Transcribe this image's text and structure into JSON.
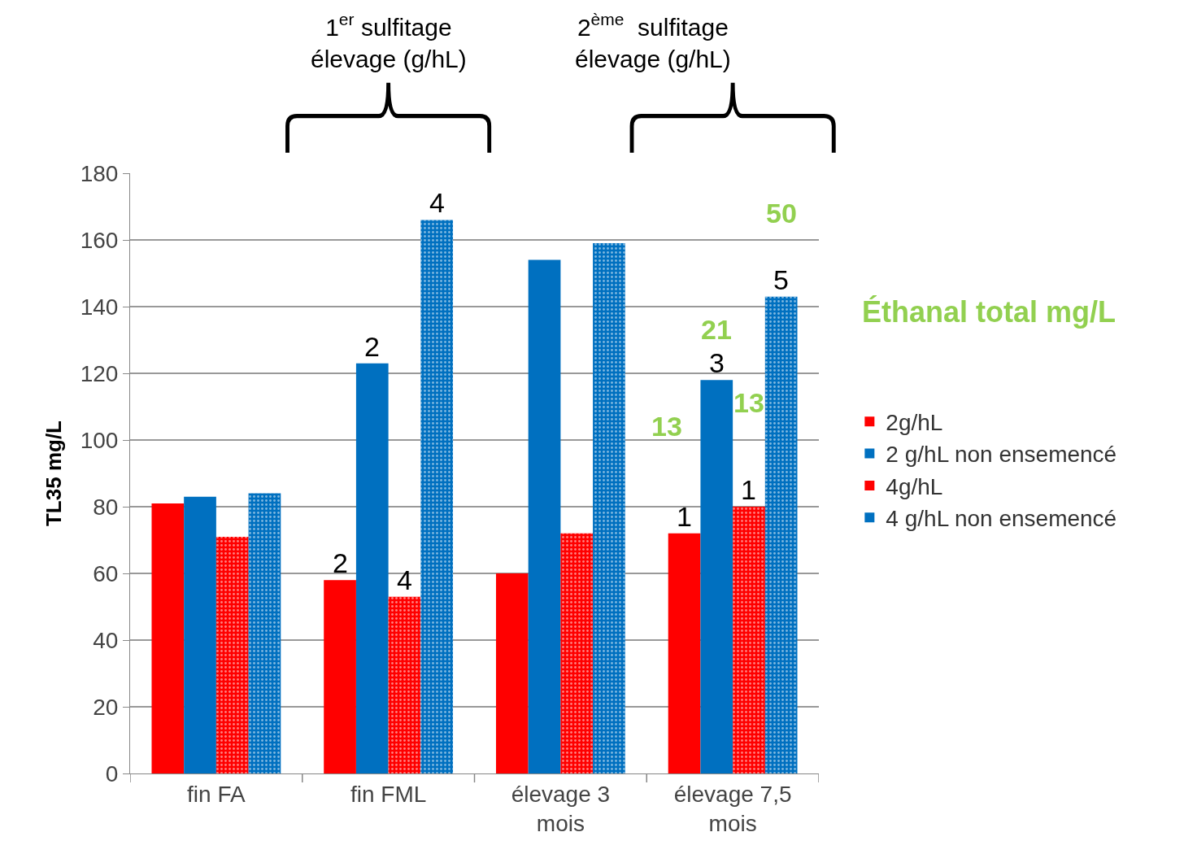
{
  "chart_data": {
    "type": "bar",
    "ylabel": "TL35 mg/L",
    "categories": [
      "fin FA",
      "fin FML",
      "élevage 3 mois",
      "élevage 7,5 mois"
    ],
    "series": [
      {
        "name": "2g/hL",
        "color": "#ff0000",
        "values": [
          81,
          58,
          60,
          72
        ]
      },
      {
        "name": "2 g/hL non ensemencé",
        "color": "#0070c0",
        "values": [
          83,
          123,
          154,
          118
        ]
      },
      {
        "name": "4g/hL",
        "color": "#ff0000",
        "values": [
          71,
          53,
          72,
          80
        ]
      },
      {
        "name": "4 g/hL non ensemencé",
        "color": "#0070c0",
        "values": [
          84,
          166,
          159,
          143
        ]
      }
    ],
    "ylim": [
      0,
      180
    ],
    "yticks": [
      0,
      20,
      40,
      60,
      80,
      100,
      120,
      140,
      160,
      180
    ],
    "grid": "y",
    "legend": "right",
    "annotations": [
      "1$^{er}$ sulfitage\nélevage (g/hL)",
      "2$^{ème}$  sulfitage\nélevage (g/hL)",
      "Éthanal total mg/L",
      "13",
      "21",
      "13",
      "50",
      "2",
      "2",
      "4",
      "4",
      "1",
      "3",
      "1",
      "5"
    ]
  }
}
